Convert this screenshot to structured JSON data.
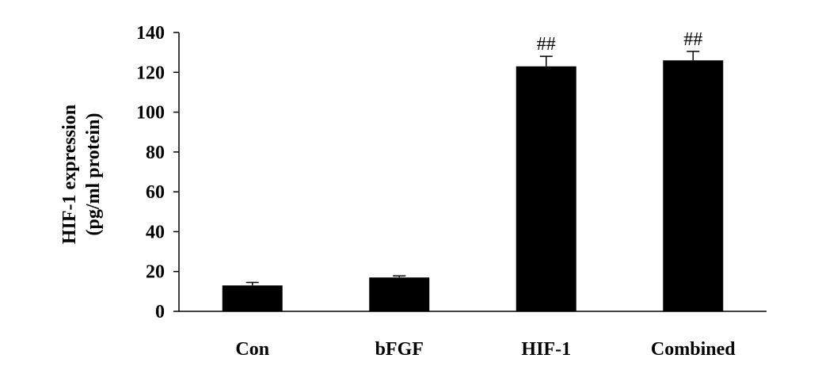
{
  "chart_data": {
    "type": "bar",
    "title": "",
    "xlabel": "",
    "ylabel_lines": [
      "HIF-1 expression",
      "(pg/ml protein)"
    ],
    "categories": [
      "Con",
      "bFGF",
      "HIF-1",
      "Combined"
    ],
    "values": [
      13,
      17,
      123,
      126
    ],
    "error": [
      1.5,
      0.8,
      5,
      4.5
    ],
    "annotations": [
      "",
      "",
      "##",
      "##"
    ],
    "ylim": [
      0,
      140
    ],
    "yticks": [
      0,
      20,
      40,
      60,
      80,
      100,
      120,
      140
    ],
    "grid": false,
    "legend": "none",
    "bar_color": "#000000"
  }
}
